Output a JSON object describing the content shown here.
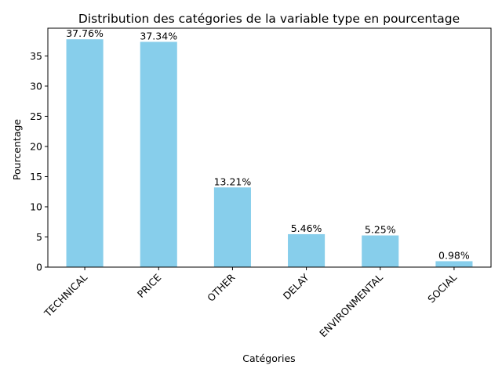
{
  "chart_data": {
    "type": "bar",
    "title": "Distribution des catégories de la variable type en pourcentage",
    "xlabel": "Catégories",
    "ylabel": "Pourcentage",
    "categories": [
      "TECHNICAL",
      "PRICE",
      "OTHER",
      "DELAY",
      "ENVIRONMENTAL",
      "SOCIAL"
    ],
    "values": [
      37.76,
      37.34,
      13.21,
      5.46,
      5.25,
      0.98
    ],
    "value_labels": [
      "37.76%",
      "37.34%",
      "13.21%",
      "5.46%",
      "5.25%",
      "0.98%"
    ],
    "ylim": [
      0,
      39.6
    ],
    "yticks": [
      0,
      5,
      10,
      15,
      20,
      25,
      30,
      35
    ],
    "bar_color": "#87ceeb",
    "grid": false,
    "legend": "none",
    "xtick_rotation": 45
  }
}
